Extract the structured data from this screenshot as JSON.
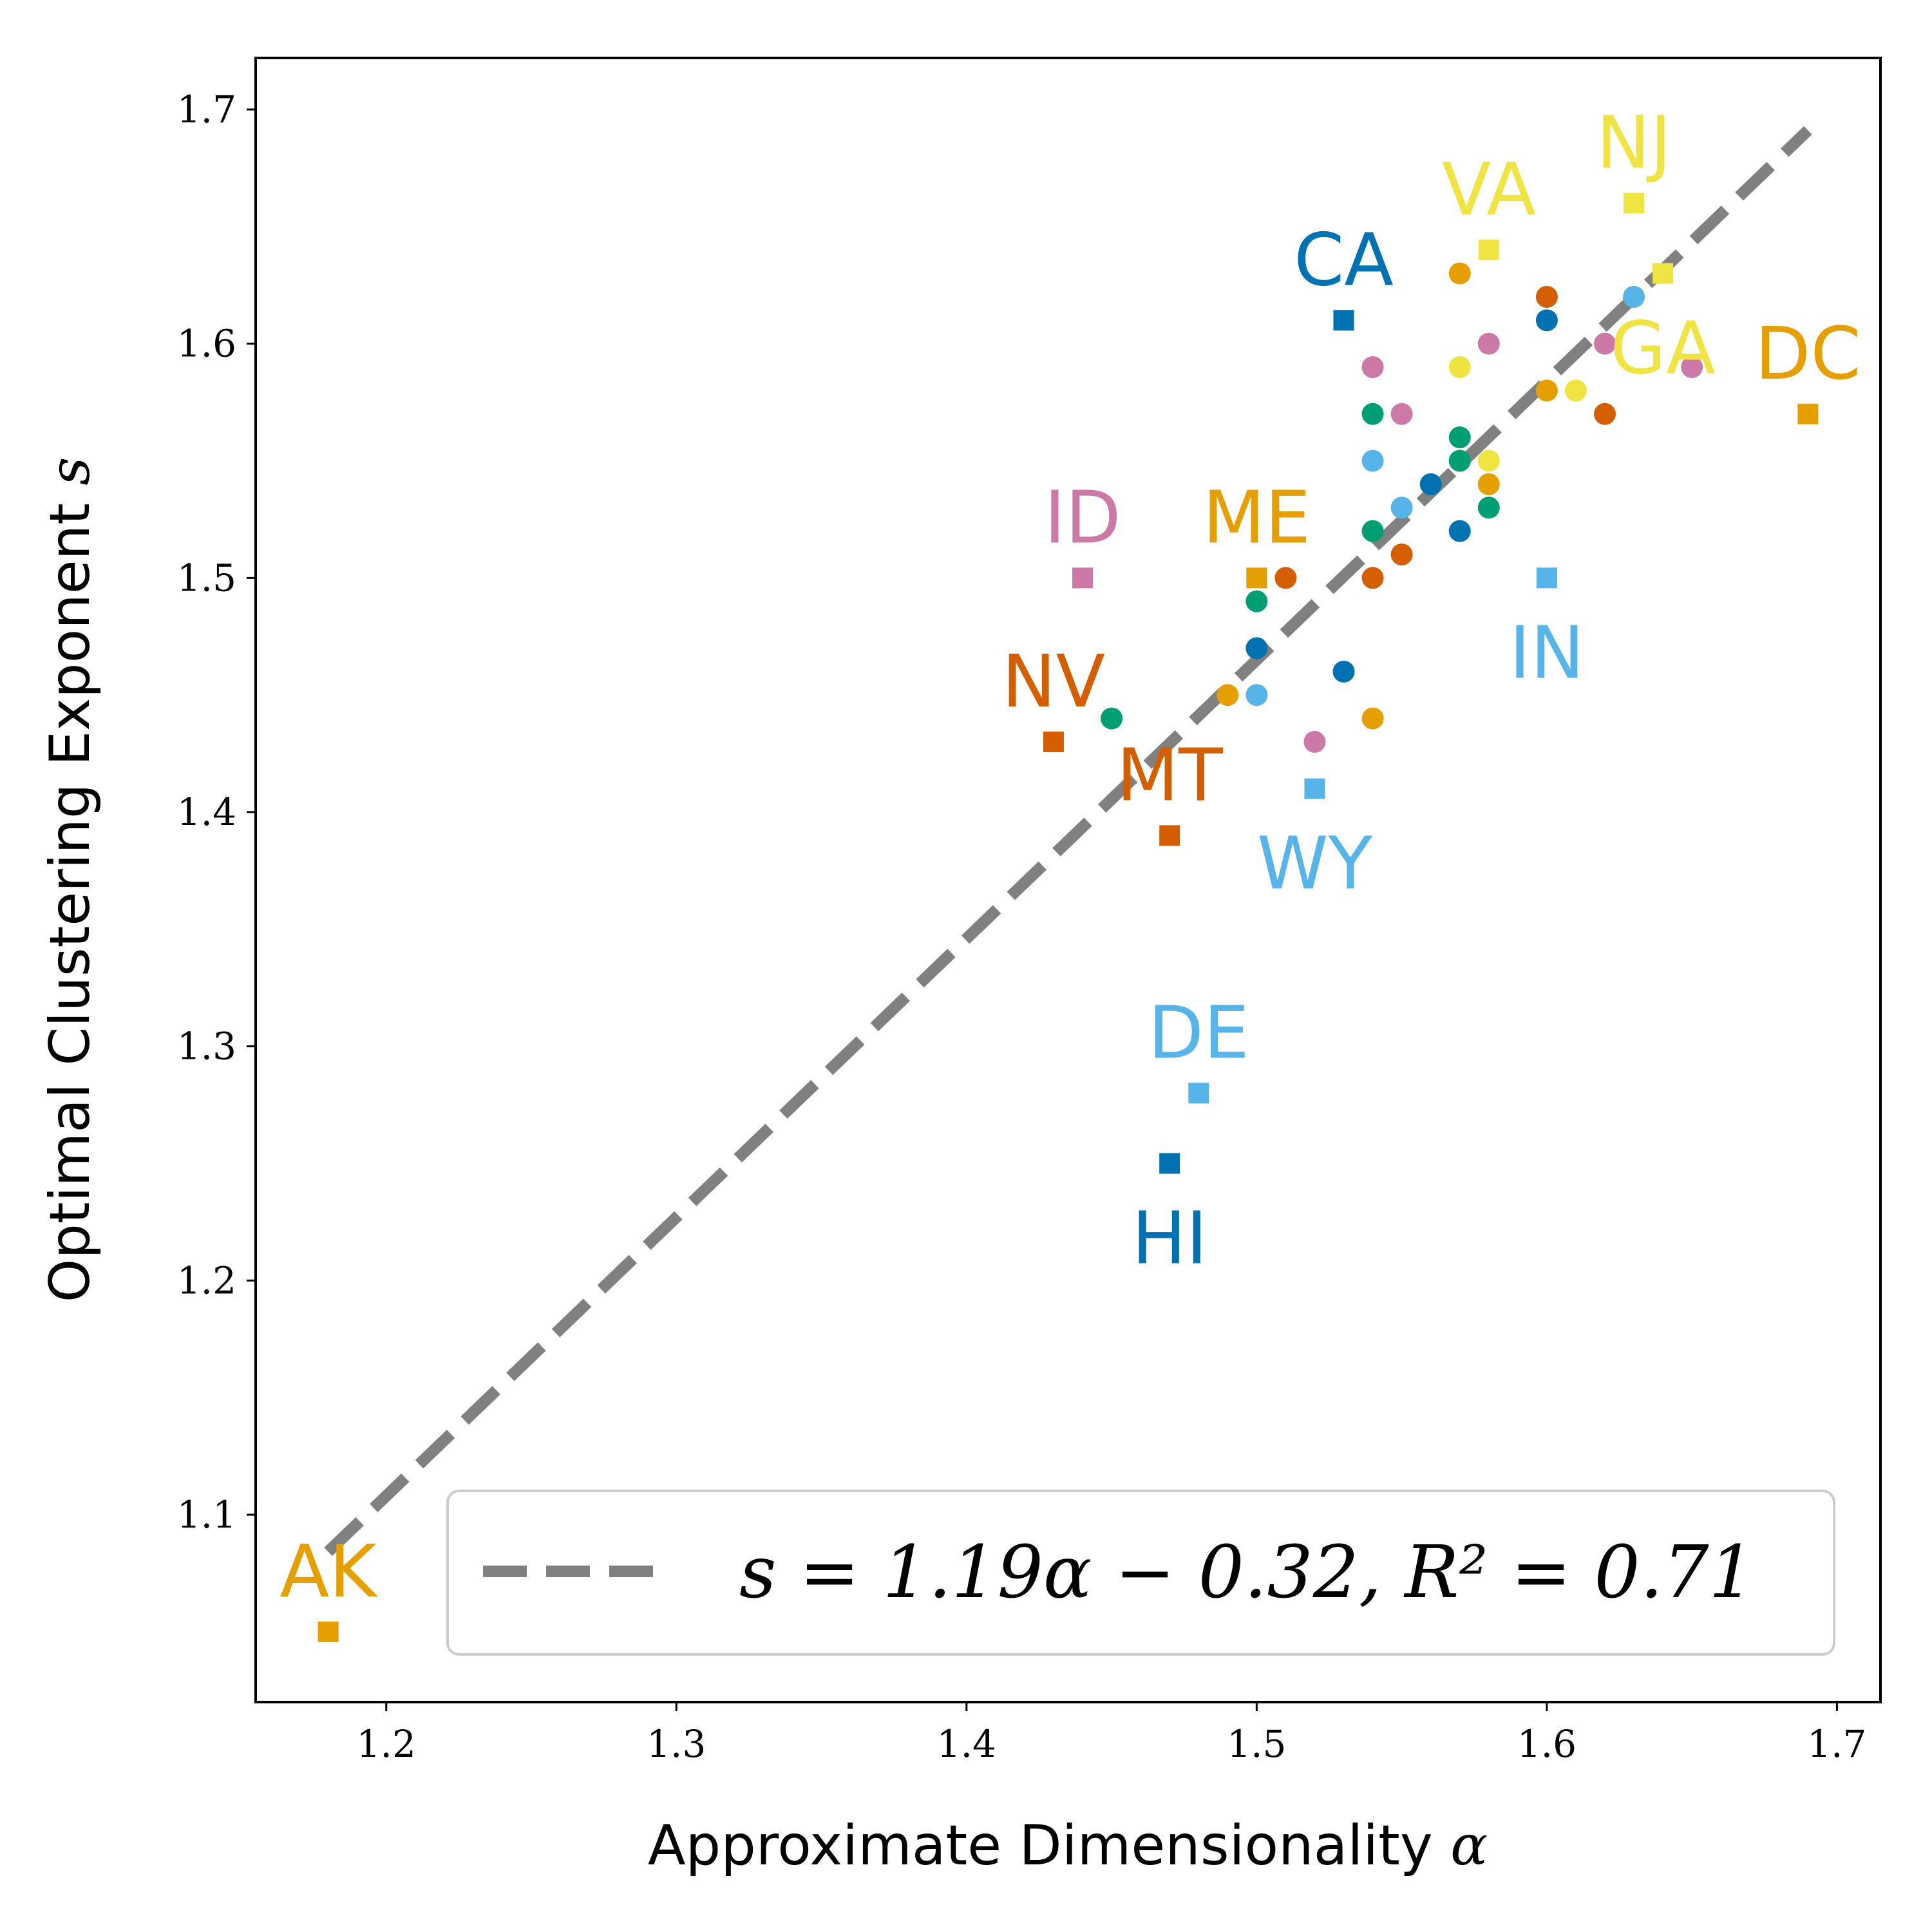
{
  "chart_data": {
    "type": "scatter",
    "xlabel": "Approximate Dimensionality",
    "xlabel_symbol": "α",
    "ylabel": "Optimal Clustering Exponent",
    "ylabel_symbol": "s",
    "xlim": [
      1.155,
      1.715
    ],
    "ylim": [
      1.02,
      1.722
    ],
    "x_ticks": [
      1.2,
      1.3,
      1.4,
      1.5,
      1.6,
      1.7
    ],
    "x_tick_labels": [
      "1.2",
      "1.3",
      "1.4",
      "1.5",
      "1.6",
      "1.7"
    ],
    "y_ticks": [
      1.1,
      1.2,
      1.3,
      1.4,
      1.5,
      1.6,
      1.7
    ],
    "y_tick_labels": [
      "1.1",
      "1.2",
      "1.3",
      "1.4",
      "1.5",
      "1.6",
      "1.7"
    ],
    "legend": {
      "location": "lower-right",
      "label": "s = 1.19α − 0.32, R² = 0.71"
    },
    "fit_line": {
      "slope": 1.19,
      "intercept": -0.32,
      "x_range": [
        1.18,
        1.69
      ],
      "color": "#808080"
    },
    "colors": {
      "blue": "#0072B2",
      "orange": "#E69F00",
      "vermillion": "#D55E00",
      "green": "#009E73",
      "sky": "#56B4E9",
      "pink": "#CC79A7",
      "yellow": "#F0E442"
    },
    "labeled_states": [
      {
        "label": "AK",
        "x": 1.18,
        "y": 1.05,
        "color": "orange",
        "label_pos": "above"
      },
      {
        "label": "HI",
        "x": 1.47,
        "y": 1.25,
        "color": "blue",
        "label_pos": "below"
      },
      {
        "label": "DE",
        "x": 1.48,
        "y": 1.28,
        "color": "sky",
        "label_pos": "above"
      },
      {
        "label": "MT",
        "x": 1.47,
        "y": 1.39,
        "color": "vermillion",
        "label_pos": "above"
      },
      {
        "label": "NV",
        "x": 1.43,
        "y": 1.43,
        "color": "vermillion",
        "label_pos": "above"
      },
      {
        "label": "WY",
        "x": 1.52,
        "y": 1.41,
        "color": "sky",
        "label_pos": "below"
      },
      {
        "label": "ID",
        "x": 1.44,
        "y": 1.5,
        "color": "pink",
        "label_pos": "above"
      },
      {
        "label": "ME",
        "x": 1.5,
        "y": 1.5,
        "color": "orange",
        "label_pos": "above"
      },
      {
        "label": "IN",
        "x": 1.6,
        "y": 1.5,
        "color": "sky",
        "label_pos": "below"
      },
      {
        "label": "CA",
        "x": 1.53,
        "y": 1.61,
        "color": "blue",
        "label_pos": "above"
      },
      {
        "label": "VA",
        "x": 1.58,
        "y": 1.64,
        "color": "yellow",
        "label_pos": "above"
      },
      {
        "label": "NJ",
        "x": 1.63,
        "y": 1.66,
        "color": "yellow",
        "label_pos": "above"
      },
      {
        "label": "GA",
        "x": 1.64,
        "y": 1.63,
        "color": "yellow",
        "label_pos": "below"
      },
      {
        "label": "DC",
        "x": 1.69,
        "y": 1.57,
        "color": "orange",
        "label_pos": "above"
      }
    ],
    "points": [
      {
        "x": 1.45,
        "y": 1.44,
        "color": "green"
      },
      {
        "x": 1.49,
        "y": 1.45,
        "color": "orange"
      },
      {
        "x": 1.5,
        "y": 1.45,
        "color": "sky"
      },
      {
        "x": 1.5,
        "y": 1.47,
        "color": "blue"
      },
      {
        "x": 1.5,
        "y": 1.49,
        "color": "green"
      },
      {
        "x": 1.51,
        "y": 1.5,
        "color": "vermillion"
      },
      {
        "x": 1.52,
        "y": 1.43,
        "color": "pink"
      },
      {
        "x": 1.53,
        "y": 1.46,
        "color": "blue"
      },
      {
        "x": 1.54,
        "y": 1.44,
        "color": "orange"
      },
      {
        "x": 1.54,
        "y": 1.5,
        "color": "vermillion"
      },
      {
        "x": 1.54,
        "y": 1.52,
        "color": "green"
      },
      {
        "x": 1.54,
        "y": 1.55,
        "color": "sky"
      },
      {
        "x": 1.54,
        "y": 1.57,
        "color": "green"
      },
      {
        "x": 1.54,
        "y": 1.59,
        "color": "pink"
      },
      {
        "x": 1.55,
        "y": 1.51,
        "color": "vermillion"
      },
      {
        "x": 1.55,
        "y": 1.53,
        "color": "sky"
      },
      {
        "x": 1.55,
        "y": 1.57,
        "color": "pink"
      },
      {
        "x": 1.56,
        "y": 1.54,
        "color": "blue"
      },
      {
        "x": 1.57,
        "y": 1.52,
        "color": "blue"
      },
      {
        "x": 1.57,
        "y": 1.55,
        "color": "green"
      },
      {
        "x": 1.57,
        "y": 1.56,
        "color": "green"
      },
      {
        "x": 1.57,
        "y": 1.59,
        "color": "yellow"
      },
      {
        "x": 1.57,
        "y": 1.63,
        "color": "orange"
      },
      {
        "x": 1.58,
        "y": 1.53,
        "color": "green"
      },
      {
        "x": 1.58,
        "y": 1.54,
        "color": "orange"
      },
      {
        "x": 1.58,
        "y": 1.55,
        "color": "yellow"
      },
      {
        "x": 1.58,
        "y": 1.6,
        "color": "pink"
      },
      {
        "x": 1.6,
        "y": 1.58,
        "color": "orange"
      },
      {
        "x": 1.6,
        "y": 1.61,
        "color": "blue"
      },
      {
        "x": 1.6,
        "y": 1.62,
        "color": "vermillion"
      },
      {
        "x": 1.61,
        "y": 1.58,
        "color": "yellow"
      },
      {
        "x": 1.62,
        "y": 1.57,
        "color": "vermillion"
      },
      {
        "x": 1.62,
        "y": 1.6,
        "color": "pink"
      },
      {
        "x": 1.63,
        "y": 1.62,
        "color": "sky"
      },
      {
        "x": 1.65,
        "y": 1.59,
        "color": "pink"
      }
    ]
  }
}
